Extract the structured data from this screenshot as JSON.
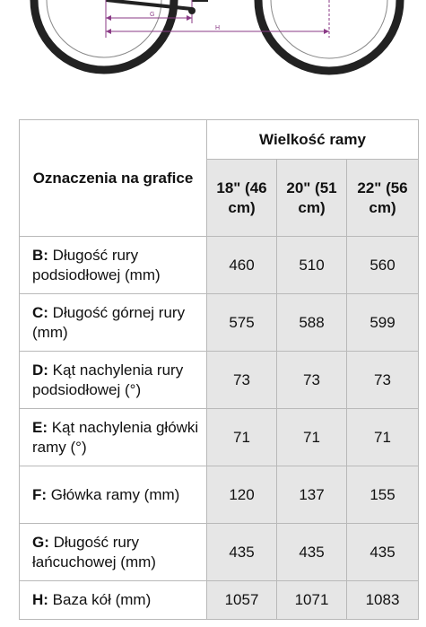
{
  "diagram": {
    "labels": [
      "G",
      "H"
    ]
  },
  "table": {
    "corner_label": "Oznaczenia na grafice",
    "group_header": "Wielkość ramy",
    "sizes": [
      "18\" (46 cm)",
      "20\" (51 cm)",
      "22\" (56 cm)"
    ],
    "rows": [
      {
        "code": "B:",
        "label": " Długość rury podsiodłowej (mm)",
        "values": [
          "460",
          "510",
          "560"
        ]
      },
      {
        "code": "C:",
        "label": " Długość górnej rury (mm)",
        "values": [
          "575",
          "588",
          "599"
        ]
      },
      {
        "code": "D:",
        "label": " Kąt nachylenia rury podsiodłowej (°)",
        "values": [
          "73",
          "73",
          "73"
        ]
      },
      {
        "code": "E:",
        "label": " Kąt nachylenia główki ramy (°)",
        "values": [
          "71",
          "71",
          "71"
        ]
      },
      {
        "code": "F:",
        "label": " Główka ramy (mm)",
        "values": [
          "120",
          "137",
          "155"
        ]
      },
      {
        "code": "G:",
        "label": " Długość rury łańcuchowej (mm)",
        "values": [
          "435",
          "435",
          "435"
        ]
      },
      {
        "code": "H:",
        "label": " Baza kół (mm)",
        "values": [
          "1057",
          "1071",
          "1083"
        ]
      }
    ]
  }
}
